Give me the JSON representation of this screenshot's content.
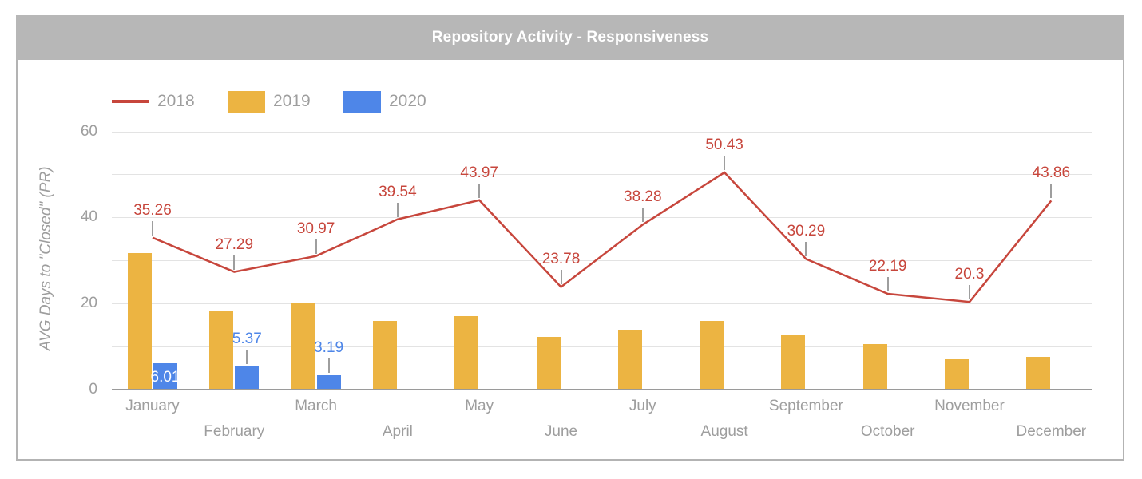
{
  "chart_data": {
    "type": "combo",
    "title": "Repository Activity - Responsiveness",
    "ylabel": "AVG Days to \"Closed\" (PR)",
    "categories": [
      "January",
      "February",
      "March",
      "April",
      "May",
      "June",
      "July",
      "August",
      "September",
      "October",
      "November",
      "December"
    ],
    "series": [
      {
        "name": "2018",
        "type": "line",
        "color": "#c7463c",
        "values": [
          35.26,
          27.29,
          30.97,
          39.54,
          43.97,
          23.78,
          38.28,
          50.43,
          30.29,
          22.19,
          20.3,
          43.86
        ],
        "labels_visible": true
      },
      {
        "name": "2019",
        "type": "bar",
        "color": "#ecb442",
        "values": [
          31.7,
          18.1,
          20.1,
          15.8,
          17.0,
          12.1,
          13.9,
          15.9,
          12.6,
          10.5,
          6.9,
          7.5
        ],
        "values_estimated": true,
        "labels_visible": false
      },
      {
        "name": "2020",
        "type": "bar",
        "color": "#4e86e8",
        "values": [
          6.01,
          5.37,
          3.19,
          null,
          null,
          null,
          null,
          null,
          null,
          null,
          null,
          null
        ],
        "labels_visible": true,
        "label_styles": [
          "inside-white",
          "above",
          "above"
        ]
      }
    ],
    "ylim": [
      0,
      60
    ],
    "y_ticks_labeled": [
      0,
      20,
      40,
      60
    ],
    "gridlines": [
      0,
      10,
      20,
      30,
      40,
      50,
      60
    ],
    "legend_position": "top",
    "grid": true
  },
  "colors": {
    "header_bg": "#b7b7b7",
    "header_text": "#ffffff",
    "axis_text": "#9e9e9e",
    "gridline": "#e3e3e3",
    "baseline": "#9a9a9a",
    "stub": "#9e9e9e",
    "card_border": "#b3b3b3",
    "background": "#ffffff",
    "series_2018": "#c7463c",
    "series_2019": "#ecb442",
    "series_2020": "#4e86e8"
  }
}
